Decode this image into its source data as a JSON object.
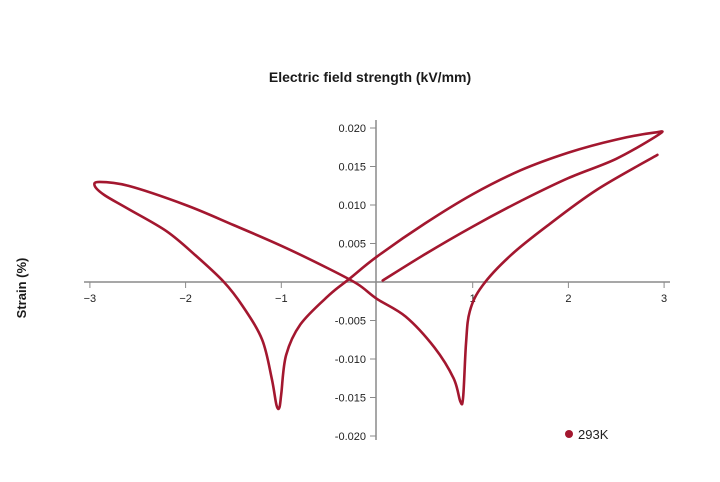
{
  "chart_data": {
    "type": "line",
    "title": "Electric field strength (kV/mm)",
    "xlabel": "Electric field strength (kV/mm)",
    "ylabel": "Strain (%)",
    "xlim": [
      -3,
      3
    ],
    "ylim": [
      -0.02,
      0.02
    ],
    "grid": false,
    "legend_position": "bottom-right",
    "x_ticks": [
      {
        "value": -3,
        "label": "−3"
      },
      {
        "value": -2,
        "label": "−2"
      },
      {
        "value": -1,
        "label": "−1"
      },
      {
        "value": 1,
        "label": "1"
      },
      {
        "value": 2,
        "label": "2"
      },
      {
        "value": 3,
        "label": "3"
      }
    ],
    "y_ticks": [
      {
        "value": 0.02,
        "label": "0.020"
      },
      {
        "value": 0.015,
        "label": "0.015"
      },
      {
        "value": 0.01,
        "label": "0.010"
      },
      {
        "value": 0.005,
        "label": "0.005"
      },
      {
        "value": -0.005,
        "label": "-0.005"
      },
      {
        "value": -0.01,
        "label": "-0.010"
      },
      {
        "value": -0.015,
        "label": "-0.015"
      },
      {
        "value": -0.02,
        "label": "-0.020"
      }
    ],
    "series": [
      {
        "name": "293K",
        "color": "#a3172f",
        "points": [
          [
            0.06,
            0.0002
          ],
          [
            0.5,
            0.0036
          ],
          [
            1.0,
            0.0072
          ],
          [
            1.5,
            0.0105
          ],
          [
            2.0,
            0.0135
          ],
          [
            2.5,
            0.016
          ],
          [
            2.95,
            0.0192
          ],
          [
            2.9,
            0.0194
          ],
          [
            2.5,
            0.0185
          ],
          [
            2.0,
            0.0168
          ],
          [
            1.5,
            0.0145
          ],
          [
            1.0,
            0.0114
          ],
          [
            0.5,
            0.0076
          ],
          [
            0.0,
            0.0033
          ],
          [
            -0.3,
            0.0003
          ],
          [
            -0.5,
            -0.0017
          ],
          [
            -0.8,
            -0.0055
          ],
          [
            -0.95,
            -0.0095
          ],
          [
            -1.0,
            -0.0145
          ],
          [
            -1.02,
            -0.0163
          ],
          [
            -1.05,
            -0.016
          ],
          [
            -1.1,
            -0.0125
          ],
          [
            -1.2,
            -0.0075
          ],
          [
            -1.4,
            -0.0032
          ],
          [
            -1.6,
            0.0
          ],
          [
            -1.9,
            0.0035
          ],
          [
            -2.2,
            0.0066
          ],
          [
            -2.6,
            0.0095
          ],
          [
            -2.85,
            0.0113
          ],
          [
            -2.95,
            0.0125
          ],
          [
            -2.9,
            0.013
          ],
          [
            -2.6,
            0.0125
          ],
          [
            -2.0,
            0.01
          ],
          [
            -1.5,
            0.0074
          ],
          [
            -1.0,
            0.0047
          ],
          [
            -0.5,
            0.0017
          ],
          [
            -0.2,
            -0.0003
          ],
          [
            0.0,
            -0.0022
          ],
          [
            0.3,
            -0.0045
          ],
          [
            0.6,
            -0.0085
          ],
          [
            0.8,
            -0.0125
          ],
          [
            0.87,
            -0.0155
          ],
          [
            0.9,
            -0.015
          ],
          [
            0.93,
            -0.008
          ],
          [
            0.97,
            -0.0038
          ],
          [
            1.1,
            -0.0005
          ],
          [
            1.4,
            0.0035
          ],
          [
            1.8,
            0.0075
          ],
          [
            2.3,
            0.012
          ],
          [
            2.93,
            0.0165
          ]
        ]
      }
    ]
  },
  "legend": {
    "items": [
      {
        "label": "293K",
        "color": "#a3172f"
      }
    ]
  }
}
